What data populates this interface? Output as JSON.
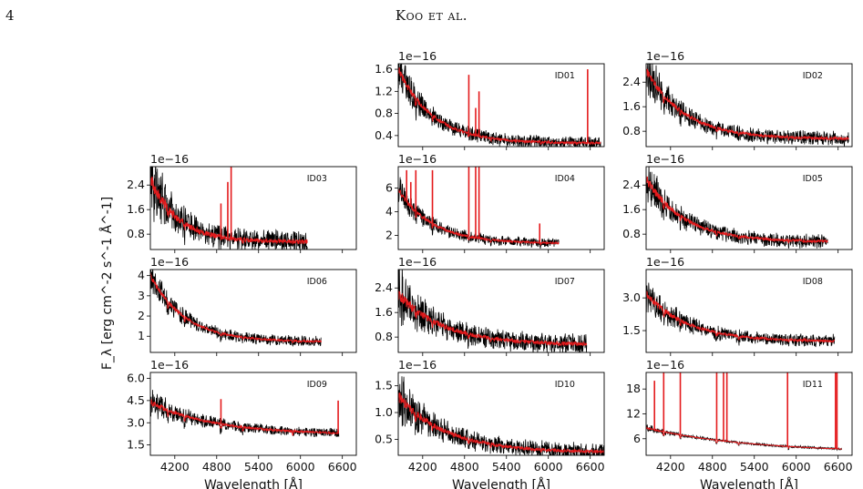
{
  "page": {
    "page_number": "4",
    "running_head": "Koo et al."
  },
  "figure": {
    "ylabel": "F_λ [erg cm^-2 s^-1 Å^-1]",
    "colors": {
      "observed": "#000000",
      "model": "#e41a1c"
    }
  },
  "chart_data": [
    {
      "id": "ID01",
      "type": "line",
      "label": "ID01",
      "offset_text": "1e−16",
      "xlabel": "",
      "xlim": [
        3850,
        6800
      ],
      "ylim": [
        0.2,
        1.7
      ],
      "yticks": [
        "0.4",
        "0.8",
        "1.2",
        "1.6"
      ],
      "ytick_values": [
        0.4,
        0.8,
        1.2,
        1.6
      ],
      "xticks": [],
      "xtick_values": [
        4200,
        4800,
        5400,
        6000,
        6600
      ],
      "x_end": 6750,
      "curve": {
        "start": 1.6,
        "end": 0.26,
        "scale": 500
      },
      "noise": 0.1,
      "lines": [
        {
          "x": 4861,
          "y": 1.5
        },
        {
          "x": 4959,
          "y": 0.9
        },
        {
          "x": 5007,
          "y": 1.2
        },
        {
          "x": 6563,
          "y": 1.6
        }
      ]
    },
    {
      "id": "ID02",
      "type": "line",
      "label": "ID02",
      "offset_text": "1e−16",
      "xlabel": "",
      "xlim": [
        3850,
        6800
      ],
      "ylim": [
        0.3,
        3.0
      ],
      "yticks": [
        "0.8",
        "1.6",
        "2.4"
      ],
      "ytick_values": [
        0.8,
        1.6,
        2.4
      ],
      "xticks": [],
      "xtick_values": [
        4200,
        4800,
        5400,
        6000,
        6600
      ],
      "x_end": 6750,
      "curve": {
        "start": 2.8,
        "end": 0.55,
        "scale": 550
      },
      "noise": 0.2,
      "lines": []
    },
    {
      "id": "ID03",
      "type": "line",
      "label": "ID03",
      "offset_text": "1e−16",
      "xlabel": "",
      "xlim": [
        3850,
        6800
      ],
      "ylim": [
        0.3,
        3.0
      ],
      "yticks": [
        "0.8",
        "1.6",
        "2.4"
      ],
      "ytick_values": [
        0.8,
        1.6,
        2.4
      ],
      "xticks": [],
      "xtick_values": [
        4200,
        4800,
        5400,
        6000,
        6600
      ],
      "x_end": 6100,
      "curve": {
        "start": 2.6,
        "end": 0.55,
        "scale": 400
      },
      "noise": 0.3,
      "lines": [
        {
          "x": 4861,
          "y": 1.8
        },
        {
          "x": 4959,
          "y": 2.5
        },
        {
          "x": 5007,
          "y": 3.0
        }
      ]
    },
    {
      "id": "ID04",
      "type": "line",
      "label": "ID04",
      "offset_text": "1e−16",
      "xlabel": "",
      "xlim": [
        3850,
        6800
      ],
      "ylim": [
        0.8,
        7.8
      ],
      "yticks": [
        "2",
        "4",
        "6"
      ],
      "ytick_values": [
        2,
        4,
        6
      ],
      "xticks": [],
      "xtick_values": [
        4200,
        4800,
        5400,
        6000,
        6600
      ],
      "x_end": 6150,
      "curve": {
        "start": 5.8,
        "end": 1.3,
        "scale": 500
      },
      "noise": 0.35,
      "lines": [
        {
          "x": 3970,
          "y": 7.5
        },
        {
          "x": 4030,
          "y": 6.5
        },
        {
          "x": 4102,
          "y": 7.5
        },
        {
          "x": 4340,
          "y": 7.5
        },
        {
          "x": 4861,
          "y": 7.8
        },
        {
          "x": 4959,
          "y": 7.8
        },
        {
          "x": 5007,
          "y": 7.8
        },
        {
          "x": 5876,
          "y": 3.0
        }
      ]
    },
    {
      "id": "ID05",
      "type": "line",
      "label": "ID05",
      "offset_text": "1e−16",
      "xlabel": "",
      "xlim": [
        3850,
        6800
      ],
      "ylim": [
        0.3,
        3.0
      ],
      "yticks": [
        "0.8",
        "1.6",
        "2.4"
      ],
      "ytick_values": [
        0.8,
        1.6,
        2.4
      ],
      "xticks": [],
      "xtick_values": [
        4200,
        4800,
        5400,
        6000,
        6600
      ],
      "x_end": 6450,
      "curve": {
        "start": 2.6,
        "end": 0.55,
        "scale": 550
      },
      "noise": 0.2,
      "lines": []
    },
    {
      "id": "ID06",
      "type": "line",
      "label": "ID06",
      "offset_text": "1e−16",
      "xlabel": "",
      "xlim": [
        3850,
        6800
      ],
      "ylim": [
        0.2,
        4.3
      ],
      "yticks": [
        "1",
        "2",
        "3",
        "4"
      ],
      "ytick_values": [
        1,
        2,
        3,
        4
      ],
      "xticks": [],
      "xtick_values": [
        4200,
        4800,
        5400,
        6000,
        6600
      ],
      "x_end": 6300,
      "curve": {
        "start": 4.0,
        "end": 0.72,
        "scale": 500
      },
      "noise": 0.22,
      "lines": []
    },
    {
      "id": "ID07",
      "type": "line",
      "label": "ID07",
      "offset_text": "1e−16",
      "xlabel": "",
      "xlim": [
        3850,
        6800
      ],
      "ylim": [
        0.3,
        3.0
      ],
      "yticks": [
        "0.8",
        "1.6",
        "2.4"
      ],
      "ytick_values": [
        0.8,
        1.6,
        2.4
      ],
      "xticks": [],
      "xtick_values": [
        4200,
        4800,
        5400,
        6000,
        6600
      ],
      "x_end": 6550,
      "curve": {
        "start": 2.2,
        "end": 0.55,
        "scale": 650
      },
      "noise": 0.28,
      "lines": []
    },
    {
      "id": "ID08",
      "type": "line",
      "label": "ID08",
      "offset_text": "1e−16",
      "xlabel": "",
      "xlim": [
        3850,
        6800
      ],
      "ylim": [
        0.5,
        4.3
      ],
      "yticks": [
        "1.5",
        "3.0"
      ],
      "ytick_values": [
        1.5,
        3.0
      ],
      "xticks": [],
      "xtick_values": [
        4200,
        4800,
        5400,
        6000,
        6600
      ],
      "x_end": 6550,
      "curve": {
        "start": 3.2,
        "end": 1.0,
        "scale": 600
      },
      "noise": 0.25,
      "lines": []
    },
    {
      "id": "ID09",
      "type": "line",
      "label": "ID09",
      "offset_text": "1e−16",
      "xlabel": "Wavelength [Å]",
      "xlim": [
        3850,
        6800
      ],
      "ylim": [
        0.8,
        6.4
      ],
      "yticks": [
        "1.5",
        "3.0",
        "4.5",
        "6.0"
      ],
      "ytick_values": [
        1.5,
        3.0,
        4.5,
        6.0
      ],
      "xticks": [
        "4200",
        "4800",
        "5400",
        "6000",
        "6600"
      ],
      "xtick_values": [
        4200,
        4800,
        5400,
        6000,
        6600
      ],
      "x_end": 6550,
      "curve": {
        "start": 4.4,
        "end": 2.2,
        "scale": 900
      },
      "noise": 0.3,
      "lines": [
        {
          "x": 4861,
          "y": 4.6
        },
        {
          "x": 6540,
          "y": 4.5
        }
      ]
    },
    {
      "id": "ID10",
      "type": "line",
      "label": "ID10",
      "offset_text": "1e−16",
      "xlabel": "Wavelength [Å]",
      "xlim": [
        3850,
        6800
      ],
      "ylim": [
        0.2,
        1.75
      ],
      "yticks": [
        "0.5",
        "1.0",
        "1.5"
      ],
      "ytick_values": [
        0.5,
        1.0,
        1.5
      ],
      "xticks": [
        "4200",
        "4800",
        "5400",
        "6000",
        "6600"
      ],
      "xtick_values": [
        4200,
        4800,
        5400,
        6000,
        6600
      ],
      "x_end": 6800,
      "curve": {
        "start": 1.3,
        "end": 0.25,
        "scale": 700
      },
      "noise": 0.14,
      "lines": []
    },
    {
      "id": "ID11",
      "type": "line",
      "label": "ID11",
      "offset_text": "1e−16",
      "xlabel": "Wavelength [Å]",
      "xlim": [
        3850,
        6800
      ],
      "ylim": [
        2,
        22
      ],
      "yticks": [
        "6",
        "12",
        "18"
      ],
      "ytick_values": [
        6,
        12,
        18
      ],
      "xticks": [
        "4200",
        "4800",
        "5400",
        "6000",
        "6600"
      ],
      "xtick_values": [
        4200,
        4800,
        5400,
        6000,
        6600
      ],
      "x_end": 6650,
      "curve": {
        "start": 8.6,
        "end": 2.6,
        "scale": 1500
      },
      "noise": 0.25,
      "lines": [
        {
          "x": 3970,
          "y": 20
        },
        {
          "x": 4102,
          "y": 22
        },
        {
          "x": 4340,
          "y": 22
        },
        {
          "x": 4861,
          "y": 22
        },
        {
          "x": 4959,
          "y": 22
        },
        {
          "x": 5007,
          "y": 22
        },
        {
          "x": 5876,
          "y": 22
        },
        {
          "x": 6563,
          "y": 22
        },
        {
          "x": 6584,
          "y": 22
        }
      ]
    }
  ]
}
